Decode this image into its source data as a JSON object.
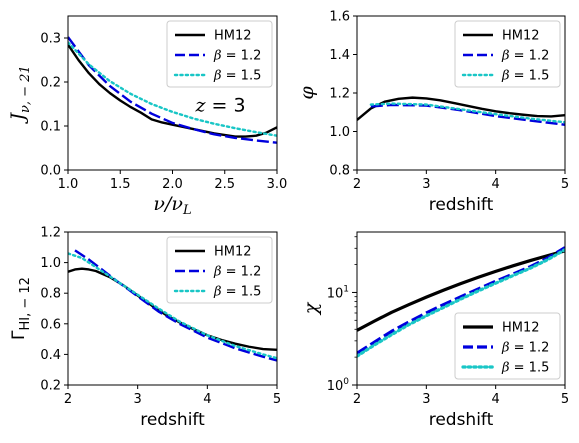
{
  "colors": {
    "HM12": "#000000",
    "beta12": "#0000dd",
    "beta15": "#19c6c6"
  },
  "chart_data": [
    {
      "id": "jnu",
      "type": "line",
      "xlabel": "ν/ν_L",
      "ylabel": "J_{ν, −21}",
      "xlim": [
        1.0,
        3.0
      ],
      "ylim": [
        0.0,
        0.35
      ],
      "xticks": [
        "1.0",
        "1.5",
        "2.0",
        "2.5",
        "3.0"
      ],
      "yticks": [
        "0.0",
        "0.1",
        "0.2",
        "0.3"
      ],
      "annotation": "z = 3",
      "legend_position": "top-right",
      "series": [
        {
          "name": "HM12",
          "style": "solid",
          "x": [
            1.0,
            1.1,
            1.2,
            1.3,
            1.4,
            1.5,
            1.6,
            1.7,
            1.8,
            1.9,
            2.0,
            2.2,
            2.4,
            2.6,
            2.7,
            2.8,
            2.9,
            3.0
          ],
          "y": [
            0.285,
            0.25,
            0.22,
            0.195,
            0.175,
            0.158,
            0.143,
            0.13,
            0.115,
            0.108,
            0.103,
            0.093,
            0.083,
            0.076,
            0.076,
            0.078,
            0.085,
            0.097
          ]
        },
        {
          "name": "β = 1.2",
          "style": "dashed",
          "x": [
            1.0,
            1.2,
            1.4,
            1.6,
            1.8,
            2.0,
            2.2,
            2.4,
            2.6,
            2.8,
            3.0
          ],
          "y": [
            0.302,
            0.238,
            0.191,
            0.155,
            0.128,
            0.107,
            0.093,
            0.081,
            0.073,
            0.067,
            0.062
          ]
        },
        {
          "name": "β = 1.5",
          "style": "dotted",
          "x": [
            1.0,
            1.2,
            1.4,
            1.6,
            1.8,
            2.0,
            2.2,
            2.4,
            2.6,
            2.8,
            3.0
          ],
          "y": [
            0.29,
            0.24,
            0.202,
            0.173,
            0.15,
            0.132,
            0.117,
            0.105,
            0.095,
            0.086,
            0.078
          ]
        }
      ]
    },
    {
      "id": "phi",
      "type": "line",
      "xlabel": "redshift",
      "ylabel": "φ",
      "xlim": [
        2,
        5
      ],
      "ylim": [
        0.8,
        1.6
      ],
      "xticks": [
        "2",
        "3",
        "4",
        "5"
      ],
      "yticks": [
        "0.8",
        "1.0",
        "1.2",
        "1.4",
        "1.6"
      ],
      "legend_position": "top-right",
      "series": [
        {
          "name": "HM12",
          "style": "solid",
          "x": [
            2.0,
            2.2,
            2.4,
            2.6,
            2.8,
            3.0,
            3.2,
            3.4,
            3.6,
            3.8,
            4.0,
            4.2,
            4.4,
            4.6,
            4.8,
            5.0
          ],
          "y": [
            1.06,
            1.12,
            1.155,
            1.17,
            1.176,
            1.172,
            1.162,
            1.148,
            1.133,
            1.118,
            1.105,
            1.095,
            1.087,
            1.08,
            1.078,
            1.085
          ]
        },
        {
          "name": "β = 1.2",
          "style": "dashed",
          "x": [
            2.2,
            2.5,
            3.0,
            3.5,
            4.0,
            4.5,
            5.0
          ],
          "y": [
            1.13,
            1.138,
            1.135,
            1.11,
            1.08,
            1.057,
            1.035
          ]
        },
        {
          "name": "β = 1.5",
          "style": "dotted",
          "x": [
            2.2,
            2.5,
            3.0,
            3.5,
            4.0,
            4.5,
            5.0
          ],
          "y": [
            1.14,
            1.145,
            1.14,
            1.115,
            1.09,
            1.067,
            1.048
          ]
        }
      ]
    },
    {
      "id": "gamma",
      "type": "line",
      "xlabel": "redshift",
      "ylabel": "Γ_{HI, −12}",
      "xlim": [
        2,
        5
      ],
      "ylim": [
        0.2,
        1.2
      ],
      "xticks": [
        "2",
        "3",
        "4",
        "5"
      ],
      "yticks": [
        "0.2",
        "0.4",
        "0.6",
        "0.8",
        "1.0",
        "1.2"
      ],
      "legend_position": "top-right",
      "series": [
        {
          "name": "HM12",
          "style": "solid",
          "x": [
            2.0,
            2.1,
            2.2,
            2.3,
            2.4,
            2.6,
            2.8,
            3.0,
            3.2,
            3.4,
            3.6,
            3.8,
            4.0,
            4.2,
            4.4,
            4.6,
            4.8,
            5.0
          ],
          "y": [
            0.94,
            0.955,
            0.96,
            0.955,
            0.945,
            0.905,
            0.85,
            0.785,
            0.72,
            0.66,
            0.61,
            0.565,
            0.525,
            0.495,
            0.47,
            0.45,
            0.435,
            0.43
          ]
        },
        {
          "name": "β = 1.2",
          "style": "dashed",
          "x": [
            2.1,
            2.3,
            2.5,
            2.7,
            3.0,
            3.3,
            3.6,
            4.0,
            4.4,
            4.8,
            5.0
          ],
          "y": [
            1.08,
            1.02,
            0.95,
            0.88,
            0.78,
            0.68,
            0.6,
            0.51,
            0.44,
            0.385,
            0.36
          ]
        },
        {
          "name": "β = 1.5",
          "style": "dotted",
          "x": [
            2.0,
            2.2,
            2.4,
            2.6,
            2.8,
            3.0,
            3.3,
            3.6,
            4.0,
            4.4,
            4.8,
            5.0
          ],
          "y": [
            1.06,
            1.03,
            0.97,
            0.91,
            0.85,
            0.79,
            0.7,
            0.615,
            0.525,
            0.455,
            0.4,
            0.375
          ]
        }
      ]
    },
    {
      "id": "chi",
      "type": "line",
      "xlabel": "redshift",
      "ylabel": "χ",
      "xlim": [
        2,
        5
      ],
      "ylim": [
        1,
        45
      ],
      "yscale": "log",
      "xticks": [
        "2",
        "3",
        "4",
        "5"
      ],
      "yticks": [
        "10^0",
        "10^1"
      ],
      "legend_position": "bottom-right",
      "series": [
        {
          "name": "HM12",
          "style": "solid",
          "x": [
            2.0,
            2.25,
            2.5,
            2.75,
            3.0,
            3.25,
            3.5,
            3.75,
            4.0,
            4.25,
            4.5,
            4.75,
            5.0
          ],
          "y": [
            3.9,
            4.9,
            6.1,
            7.4,
            8.9,
            10.6,
            12.5,
            14.6,
            16.9,
            19.4,
            22.1,
            25.0,
            28.2
          ]
        },
        {
          "name": "β = 1.2",
          "style": "dashed",
          "x": [
            2.0,
            2.25,
            2.5,
            2.75,
            3.0,
            3.25,
            3.5,
            3.75,
            4.0,
            4.25,
            4.5,
            4.75,
            5.0
          ],
          "y": [
            2.2,
            2.9,
            3.8,
            4.8,
            6.0,
            7.4,
            9.0,
            10.9,
            13.2,
            15.8,
            19.0,
            23.5,
            30.5
          ]
        },
        {
          "name": "β = 1.5",
          "style": "dotted",
          "x": [
            2.0,
            2.25,
            2.5,
            2.75,
            3.0,
            3.25,
            3.5,
            3.75,
            4.0,
            4.25,
            4.5,
            4.75,
            5.0
          ],
          "y": [
            2.05,
            2.7,
            3.5,
            4.5,
            5.6,
            6.9,
            8.5,
            10.4,
            12.6,
            15.2,
            18.3,
            22.6,
            29.0
          ]
        }
      ]
    }
  ]
}
